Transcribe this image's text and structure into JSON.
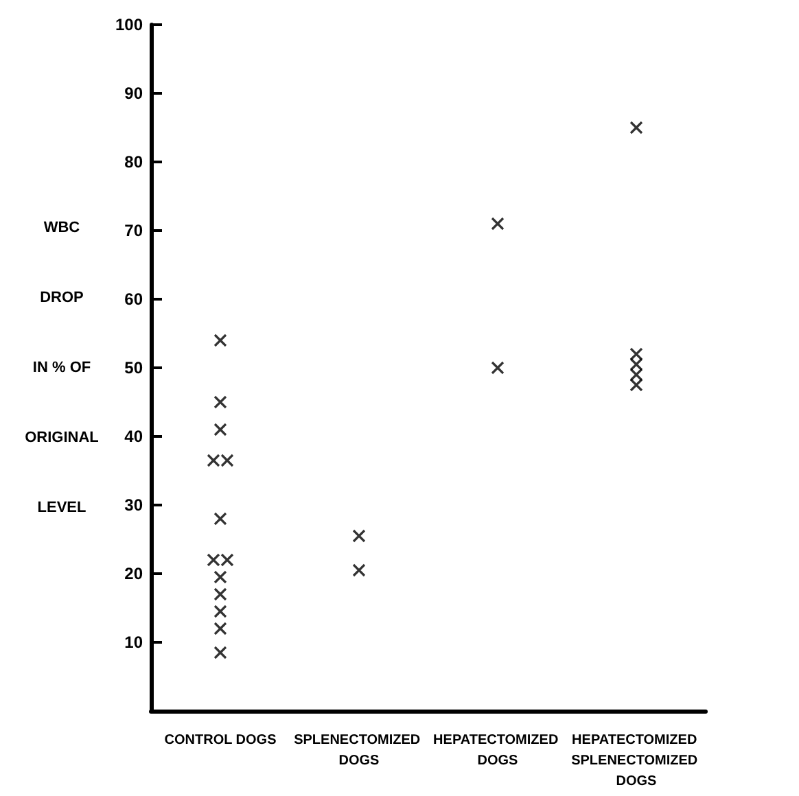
{
  "chart_data": {
    "type": "scatter",
    "ylabel": "WBC\nDROP\nIN % OF\nORIGINAL\nLEVEL",
    "categories": [
      "CONTROL DOGS",
      "SPLENECTOMIZED DOGS",
      "HEPATECTOMIZED DOGS",
      "HEPATECTOMIZED SPLENECTOMIZED DOGS"
    ],
    "series": [
      {
        "color": "#000000",
        "x": [
          "CONTROL DOGS",
          "CONTROL DOGS",
          "CONTROL DOGS",
          "CONTROL DOGS",
          "CONTROL DOGS",
          "CONTROL DOGS",
          "CONTROL DOGS",
          "CONTROL DOGS",
          "CONTROL DOGS",
          "CONTROL DOGS",
          "CONTROL DOGS",
          "CONTROL DOGS",
          "CONTROL DOGS",
          "SPLENECTOMIZED DOGS",
          "SPLENECTOMIZED DOGS",
          "HEPATECTOMIZED DOGS",
          "HEPATECTOMIZED DOGS",
          "HEPATECTOMIZED SPLENECTOMIZED DOGS",
          "HEPATECTOMIZED SPLENECTOMIZED DOGS",
          "HEPATECTOMIZED SPLENECTOMIZED DOGS",
          "HEPATECTOMIZED SPLENECTOMIZED DOGS",
          "HEPATECTOMIZED SPLENECTOMIZED DOGS"
        ],
        "values": [
          54,
          45,
          41,
          36.5,
          36.5,
          28,
          22,
          22,
          19.5,
          17,
          14.5,
          12,
          8.5,
          25.5,
          20.5,
          71,
          50,
          85,
          52,
          50.5,
          49,
          47.5
        ]
      }
    ],
    "ylim": [
      0,
      100
    ],
    "yticks": [
      10,
      20,
      30,
      40,
      50,
      60,
      70,
      80,
      90,
      100
    ],
    "marker": "cross"
  }
}
